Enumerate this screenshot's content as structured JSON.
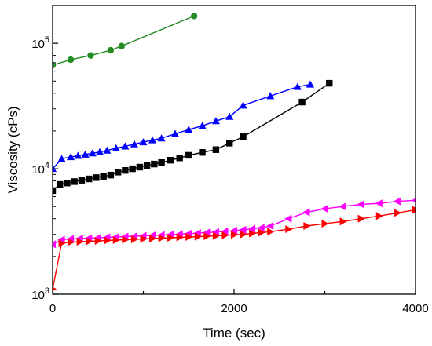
{
  "chart_data": {
    "type": "scatter",
    "xlabel": "Time (sec)",
    "ylabel": "Viscosity (cPs)",
    "xlim": [
      0,
      4000
    ],
    "ylim": [
      1000,
      200000
    ],
    "y_scale": "log",
    "grid": false,
    "x_ticks": [
      {
        "value": 0,
        "label": "0"
      },
      {
        "value": 2000,
        "label": "2000"
      },
      {
        "value": 4000,
        "label": "4000"
      }
    ],
    "y_ticks": [
      {
        "value": 1000,
        "base": "10",
        "exp": "3"
      },
      {
        "value": 10000,
        "base": "10",
        "exp": "4"
      },
      {
        "value": 100000,
        "base": "10",
        "exp": "5"
      }
    ],
    "series": [
      {
        "color": "#228b22",
        "marker": "circle",
        "x": [
          0,
          200,
          420,
          640,
          760,
          1560
        ],
        "y": [
          67000,
          74000,
          80000,
          88000,
          95000,
          165000
        ]
      },
      {
        "color": "#0000ff",
        "marker": "triangle-up",
        "x": [
          0,
          100,
          200,
          280,
          360,
          440,
          520,
          600,
          700,
          800,
          900,
          1000,
          1100,
          1200,
          1350,
          1500,
          1650,
          1800,
          1950,
          2100,
          2400,
          2700,
          2840
        ],
        "y": [
          10000,
          12000,
          12400,
          12700,
          13000,
          13300,
          13600,
          14000,
          14600,
          15100,
          15700,
          16300,
          16900,
          17500,
          19000,
          20500,
          22000,
          24000,
          26000,
          32000,
          38000,
          45000,
          47000
        ]
      },
      {
        "color": "#000000",
        "marker": "square",
        "x": [
          0,
          80,
          160,
          240,
          320,
          400,
          480,
          560,
          640,
          720,
          800,
          880,
          960,
          1040,
          1120,
          1200,
          1300,
          1400,
          1500,
          1650,
          1800,
          1950,
          2100,
          2750,
          3050
        ],
        "y": [
          6700,
          7500,
          7700,
          7900,
          8100,
          8300,
          8500,
          8700,
          8900,
          9400,
          9700,
          10000,
          10300,
          10600,
          10900,
          11200,
          11700,
          12200,
          12800,
          13500,
          14200,
          16000,
          18000,
          34000,
          48000
        ]
      },
      {
        "color": "#ff00ff",
        "marker": "triangle-left",
        "x": [
          0,
          100,
          200,
          300,
          400,
          500,
          600,
          700,
          800,
          900,
          1000,
          1100,
          1200,
          1300,
          1400,
          1500,
          1600,
          1700,
          1800,
          1900,
          2000,
          2100,
          2200,
          2300,
          2400,
          2600,
          2800,
          3000,
          3200,
          3400,
          3600,
          3800,
          4000
        ],
        "y": [
          2500,
          2720,
          2760,
          2780,
          2800,
          2820,
          2840,
          2860,
          2880,
          2900,
          2920,
          2940,
          2960,
          2985,
          3010,
          3040,
          3070,
          3100,
          3130,
          3170,
          3210,
          3260,
          3320,
          3380,
          3500,
          4000,
          4500,
          4800,
          5000,
          5200,
          5300,
          5500,
          5600
        ]
      },
      {
        "color": "#ff0000",
        "marker": "triangle-right",
        "x": [
          0,
          100,
          200,
          300,
          400,
          500,
          600,
          700,
          800,
          900,
          1000,
          1100,
          1200,
          1300,
          1400,
          1500,
          1600,
          1700,
          1800,
          1900,
          2000,
          2100,
          2200,
          2300,
          2400,
          2600,
          2800,
          3000,
          3200,
          3400,
          3600,
          3800,
          4000
        ],
        "y": [
          1100,
          2550,
          2600,
          2620,
          2640,
          2660,
          2680,
          2700,
          2720,
          2740,
          2760,
          2780,
          2800,
          2820,
          2840,
          2860,
          2880,
          2900,
          2920,
          2950,
          2980,
          3000,
          3050,
          3100,
          3150,
          3300,
          3500,
          3650,
          3800,
          4000,
          4200,
          4450,
          4700
        ]
      }
    ]
  }
}
